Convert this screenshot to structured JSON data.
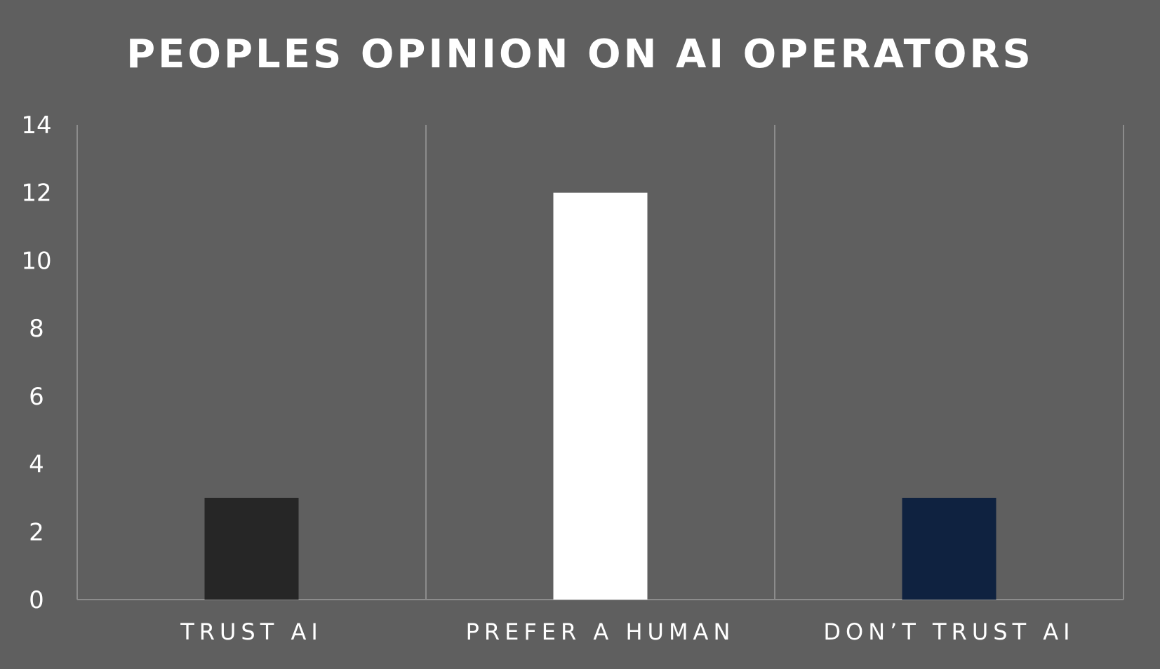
{
  "chart_data": {
    "type": "bar",
    "title": "PEOPLES OPINION ON AI OPERATORS",
    "categories": [
      "TRUST AI",
      "PREFER A HUMAN",
      "DON’T TRUST AI"
    ],
    "values": [
      3,
      12,
      3
    ],
    "bar_colors": [
      "#262626",
      "#ffffff",
      "#0f2240"
    ],
    "xlabel": "",
    "ylabel": "",
    "ylim": [
      0,
      14
    ],
    "yticks": [
      0,
      2,
      4,
      6,
      8,
      10,
      12,
      14
    ],
    "grid": "vertical category separators",
    "legend": "none",
    "background_color": "#5f5f5f",
    "axis_color": "#8c8c8c",
    "text_color": "#ffffff"
  }
}
